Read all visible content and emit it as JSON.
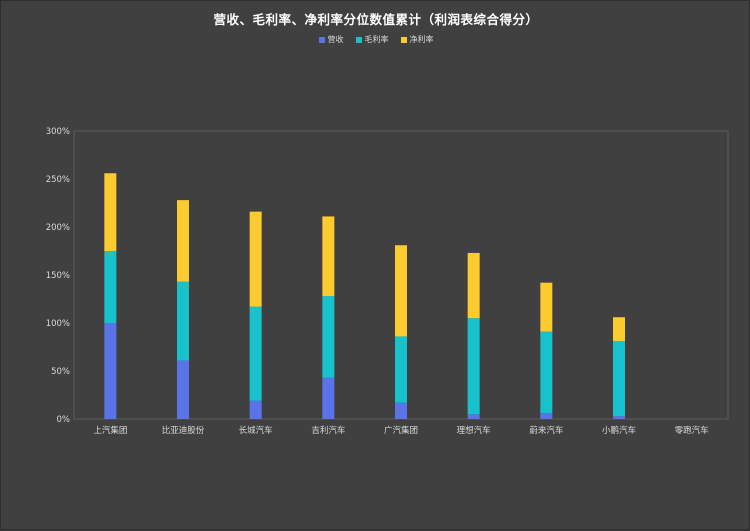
{
  "chart_data": {
    "type": "bar",
    "stacked": true,
    "title": "营收、毛利率、净利率分位数值累计（利润表综合得分）",
    "categories": [
      "上汽集团",
      "比亚迪股份",
      "长城汽车",
      "吉利汽车",
      "广汽集团",
      "理想汽车",
      "蔚来汽车",
      "小鹏汽车",
      "零跑汽车"
    ],
    "series": [
      {
        "name": "营收",
        "color": "#5a73e8",
        "values": [
          100,
          61,
          19,
          43,
          17,
          5,
          6,
          3,
          0
        ]
      },
      {
        "name": "毛利率",
        "color": "#17c2cc",
        "values": [
          75,
          82,
          98,
          85,
          69,
          100,
          85,
          78,
          0
        ]
      },
      {
        "name": "净利率",
        "color": "#fccb2f",
        "values": [
          81,
          85,
          99,
          83,
          95,
          68,
          51,
          25,
          0
        ]
      }
    ],
    "ylim": [
      0,
      300
    ],
    "yticks": [
      "0%",
      "50%",
      "100%",
      "150%",
      "200%",
      "250%",
      "300%"
    ],
    "legend_position": "top-center",
    "grid": false
  }
}
